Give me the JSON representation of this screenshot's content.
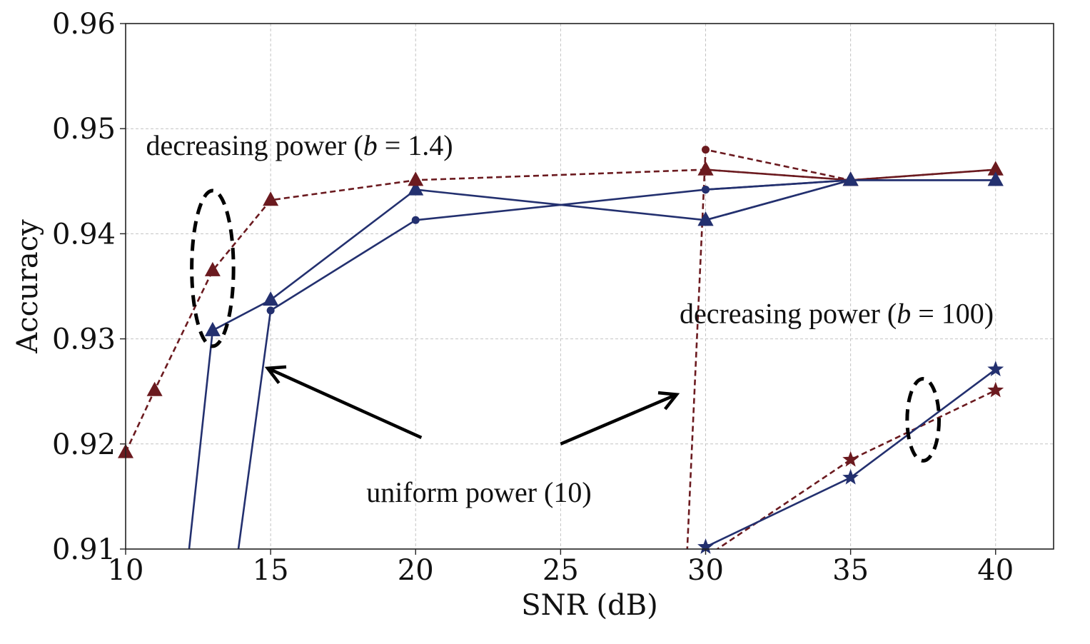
{
  "chart_data": {
    "type": "line",
    "title": "",
    "xlabel": "SNR (dB)",
    "ylabel": "Accuracy",
    "xlim": [
      10,
      42
    ],
    "ylim": [
      0.91,
      0.96
    ],
    "xticks": [
      10,
      15,
      20,
      25,
      30,
      35,
      40
    ],
    "yticks": [
      0.91,
      0.92,
      0.93,
      0.94,
      0.95,
      0.96
    ],
    "xtick_labels": [
      "10",
      "15",
      "20",
      "25",
      "30",
      "35",
      "40"
    ],
    "ytick_labels": [
      "0.91",
      "0.92",
      "0.93",
      "0.94",
      "0.95",
      "0.96"
    ],
    "grid": true,
    "colors": {
      "blue": "#23306f",
      "red": "#6b1a1f",
      "annotation": "#000000"
    },
    "series": [
      {
        "name": "blue-dot-1.4",
        "color": "#23306f",
        "dash": "solid",
        "marker": "dot",
        "x": [
          13.4,
          15,
          20,
          30,
          35,
          40
        ],
        "y": [
          0.9,
          0.9327,
          0.9413,
          0.9442,
          0.9451,
          0.9451
        ]
      },
      {
        "name": "blue-triangle-1.4",
        "color": "#23306f",
        "dash": "solid",
        "marker": "triangle",
        "x": [
          11.8,
          13,
          15,
          20,
          30,
          35,
          40
        ],
        "y": [
          0.9,
          0.9308,
          0.9337,
          0.9442,
          0.9413,
          0.9451,
          0.9451
        ]
      },
      {
        "name": "red-triangle-1.4",
        "color": "#6b1a1f",
        "dash": "dashed",
        "marker": "triangle",
        "x": [
          10,
          11,
          13,
          15,
          20,
          30,
          35,
          40
        ],
        "y": [
          0.9192,
          0.9251,
          0.9365,
          0.9432,
          0.9451,
          0.9461,
          0.9451,
          0.9461
        ]
      },
      {
        "name": "red-dot-100",
        "color": "#6b1a1f",
        "dash": "dashed",
        "marker": "dot",
        "x": [
          29.2,
          30,
          35
        ],
        "y": [
          0.9,
          0.948,
          0.9451
        ]
      },
      {
        "name": "red-triangle-100",
        "color": "#6b1a1f",
        "dash": "dashed",
        "marker": "triangle",
        "x": [
          30,
          35,
          40
        ],
        "y": [
          0.9461,
          0.9451,
          0.9461
        ]
      },
      {
        "name": "blue-triangle-100",
        "color": "#23306f",
        "dash": "solid",
        "marker": "triangle",
        "x": [
          30,
          35,
          40
        ],
        "y": [
          0.9413,
          0.9451,
          0.9451
        ]
      },
      {
        "name": "blue-dot-100",
        "color": "#23306f",
        "dash": "solid",
        "marker": "dot",
        "x": [
          30,
          35
        ],
        "y": [
          0.9442,
          0.9451
        ]
      },
      {
        "name": "red-star-100",
        "color": "#6b1a1f",
        "dash": "dashed",
        "marker": "star",
        "x": [
          30.3,
          35,
          40
        ],
        "y": [
          0.9098,
          0.9185,
          0.9251
        ]
      },
      {
        "name": "blue-star-100",
        "color": "#23306f",
        "dash": "solid",
        "marker": "star",
        "x": [
          30,
          35,
          40
        ],
        "y": [
          0.9102,
          0.9168,
          0.9271
        ]
      }
    ],
    "annotations": [
      {
        "name": "label-decreasing-1.4",
        "prefix": "decreasing power (",
        "var": "b",
        "suffix": " = 1.4)",
        "x": 10.7,
        "y": 0.9475
      },
      {
        "name": "label-decreasing-100",
        "prefix": "decreasing power (",
        "var": "b",
        "suffix": " = 100)",
        "x": 29.1,
        "y": 0.9315
      },
      {
        "name": "label-uniform",
        "text": "uniform  power (10)",
        "x": 18.3,
        "y": 0.9145
      }
    ],
    "arrows": [
      {
        "name": "arrow-to-15",
        "from": [
          20.2,
          0.9206
        ],
        "to": [
          14.9,
          0.9272
        ]
      },
      {
        "name": "arrow-to-29",
        "from": [
          25.0,
          0.92
        ],
        "to": [
          29.0,
          0.9247
        ]
      }
    ],
    "ellipses": [
      {
        "name": "ellipse-snr13",
        "cx": 13,
        "cy": 0.9367,
        "rx": 0.72,
        "ry": 0.0074
      },
      {
        "name": "ellipse-snr37",
        "cx": 37.5,
        "cy": 0.9223,
        "rx": 0.55,
        "ry": 0.0039
      }
    ]
  }
}
